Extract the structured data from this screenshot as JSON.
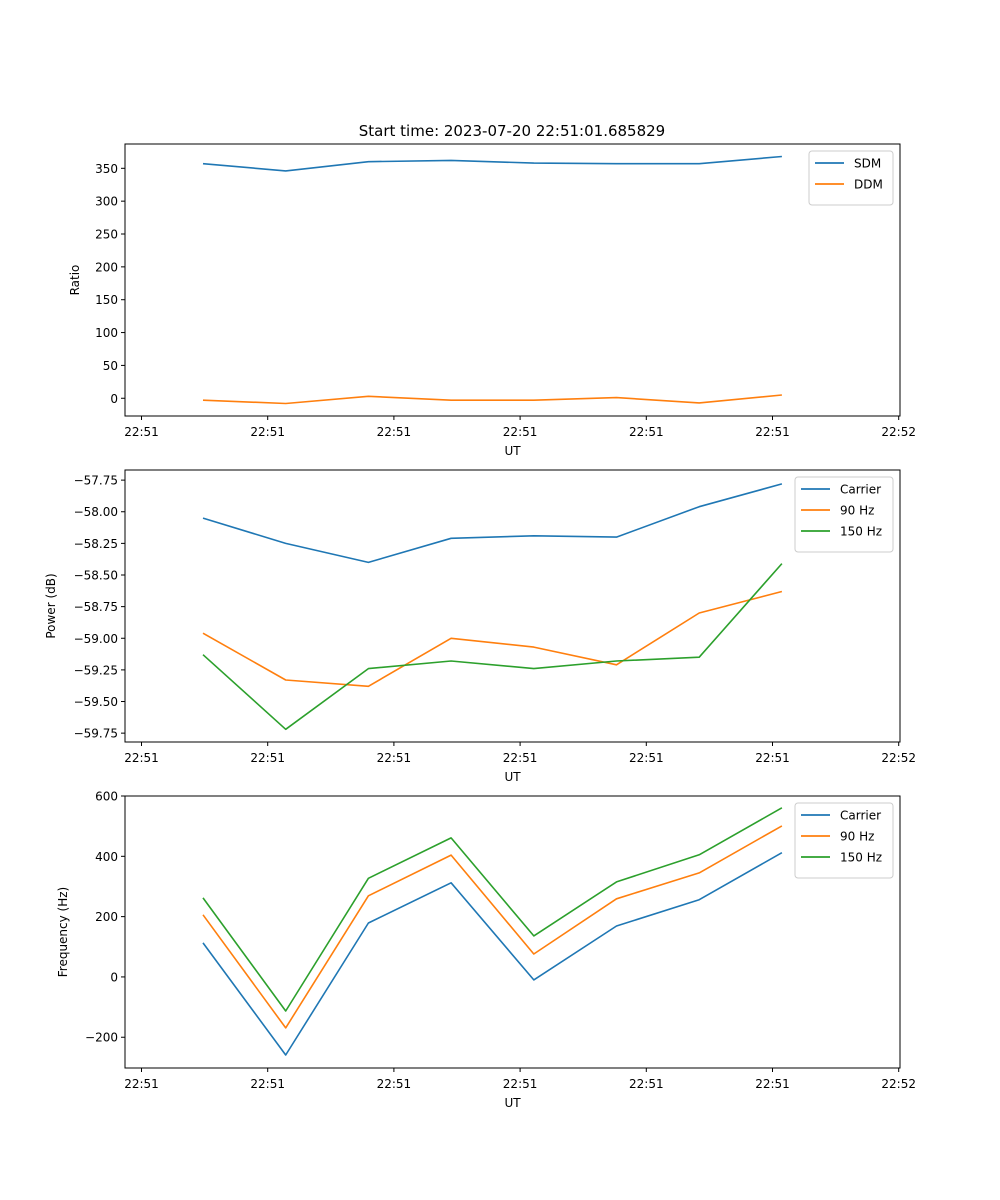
{
  "figure": {
    "title": "Start time: 2023-07-20 22:51:01.685829"
  },
  "colors": {
    "blue": "#1f77b4",
    "orange": "#ff7f0e",
    "green": "#2ca02c"
  },
  "chart_data": [
    {
      "type": "line",
      "title": "Start time: 2023-07-20 22:51:01.685829",
      "xlabel": "UT",
      "ylabel": "Ratio",
      "x_index": [
        0,
        1,
        2,
        3,
        4,
        5,
        6,
        7
      ],
      "xticks": [
        "22:51",
        "22:51",
        "22:51",
        "22:51",
        "22:51",
        "22:51",
        "22:52"
      ],
      "ylim": [
        -27,
        387
      ],
      "yticks": [
        0,
        50,
        100,
        150,
        200,
        250,
        300,
        350
      ],
      "ytick_labels": [
        "0",
        "50",
        "100",
        "150",
        "200",
        "250",
        "300",
        "350"
      ],
      "grid": false,
      "legend": "top-right",
      "series": [
        {
          "name": "SDM",
          "color": "#1f77b4",
          "values": [
            357,
            346,
            360,
            362,
            358,
            357,
            357,
            368
          ]
        },
        {
          "name": "DDM",
          "color": "#ff7f0e",
          "values": [
            -3,
            -8,
            3,
            -3,
            -3,
            1,
            -7,
            5
          ]
        }
      ]
    },
    {
      "type": "line",
      "title": "",
      "xlabel": "UT",
      "ylabel": "Power (dB)",
      "x_index": [
        0,
        1,
        2,
        3,
        4,
        5,
        6,
        7
      ],
      "xticks": [
        "22:51",
        "22:51",
        "22:51",
        "22:51",
        "22:51",
        "22:51",
        "22:52"
      ],
      "ylim": [
        -59.82,
        -57.67
      ],
      "yticks": [
        -59.75,
        -59.5,
        -59.25,
        -59.0,
        -58.75,
        -58.5,
        -58.25,
        -58.0,
        -57.75
      ],
      "ytick_labels": [
        "−59.75",
        "−59.50",
        "−59.25",
        "−59.00",
        "−58.75",
        "−58.50",
        "−58.25",
        "−58.00",
        "−57.75"
      ],
      "grid": false,
      "legend": "top-right",
      "series": [
        {
          "name": "Carrier",
          "color": "#1f77b4",
          "values": [
            -58.05,
            -58.25,
            -58.4,
            -58.21,
            -58.19,
            -58.2,
            -57.96,
            -57.78
          ]
        },
        {
          "name": "90 Hz",
          "color": "#ff7f0e",
          "values": [
            -58.96,
            -59.33,
            -59.38,
            -59.0,
            -59.07,
            -59.21,
            -58.8,
            -58.63
          ]
        },
        {
          "name": "150 Hz",
          "color": "#2ca02c",
          "values": [
            -59.13,
            -59.72,
            -59.24,
            -59.18,
            -59.24,
            -59.18,
            -59.15,
            -58.41
          ]
        }
      ]
    },
    {
      "type": "line",
      "title": "",
      "xlabel": "UT",
      "ylabel": "Frequency (Hz)",
      "x_index": [
        0,
        1,
        2,
        3,
        4,
        5,
        6,
        7
      ],
      "xticks": [
        "22:51",
        "22:51",
        "22:51",
        "22:51",
        "22:51",
        "22:51",
        "22:52"
      ],
      "ylim": [
        -302,
        600
      ],
      "yticks": [
        -200,
        0,
        200,
        400,
        600
      ],
      "ytick_labels": [
        "−200",
        "0",
        "200",
        "400",
        "600"
      ],
      "grid": false,
      "legend": "top-right",
      "series": [
        {
          "name": "Carrier",
          "color": "#1f77b4",
          "values": [
            113,
            -259,
            179,
            312,
            -10,
            169,
            256,
            412
          ]
        },
        {
          "name": "90 Hz",
          "color": "#ff7f0e",
          "values": [
            206,
            -169,
            269,
            404,
            76,
            259,
            345,
            501
          ]
        },
        {
          "name": "150 Hz",
          "color": "#2ca02c",
          "values": [
            262,
            -113,
            327,
            461,
            136,
            315,
            405,
            561
          ]
        }
      ]
    }
  ]
}
